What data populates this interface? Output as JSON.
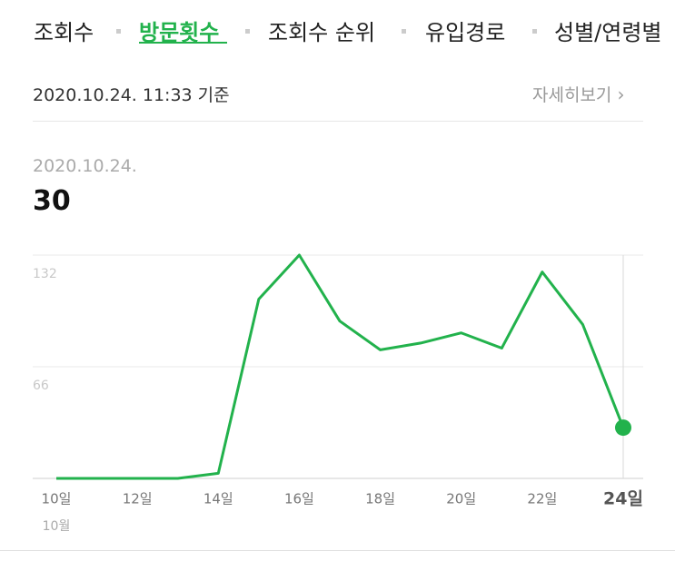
{
  "tabs": [
    "조회수",
    "방문횟수",
    "조회수 순위",
    "유입경로",
    "성별/연령별"
  ],
  "active_tab": 1,
  "header": {
    "timestamp": "2020.10.24. 11:33 기준",
    "detail_link": "자세히보기"
  },
  "selected": {
    "date": "2020.10.24.",
    "value": "30"
  },
  "chart_data": {
    "type": "line",
    "categories": [
      "10일",
      null,
      "12일",
      null,
      "14일",
      null,
      "16일",
      null,
      "18일",
      null,
      "20일",
      null,
      "22일",
      null,
      "24일"
    ],
    "month_label": "10월",
    "series": [
      {
        "color": "#22b24c",
        "values": [
          0,
          0,
          0,
          0,
          3,
          106,
          132,
          93,
          76,
          80,
          86,
          77,
          122,
          91,
          30
        ]
      }
    ],
    "ylim": [
      0,
      132
    ],
    "yticks": [
      66,
      132
    ],
    "grid": true
  }
}
